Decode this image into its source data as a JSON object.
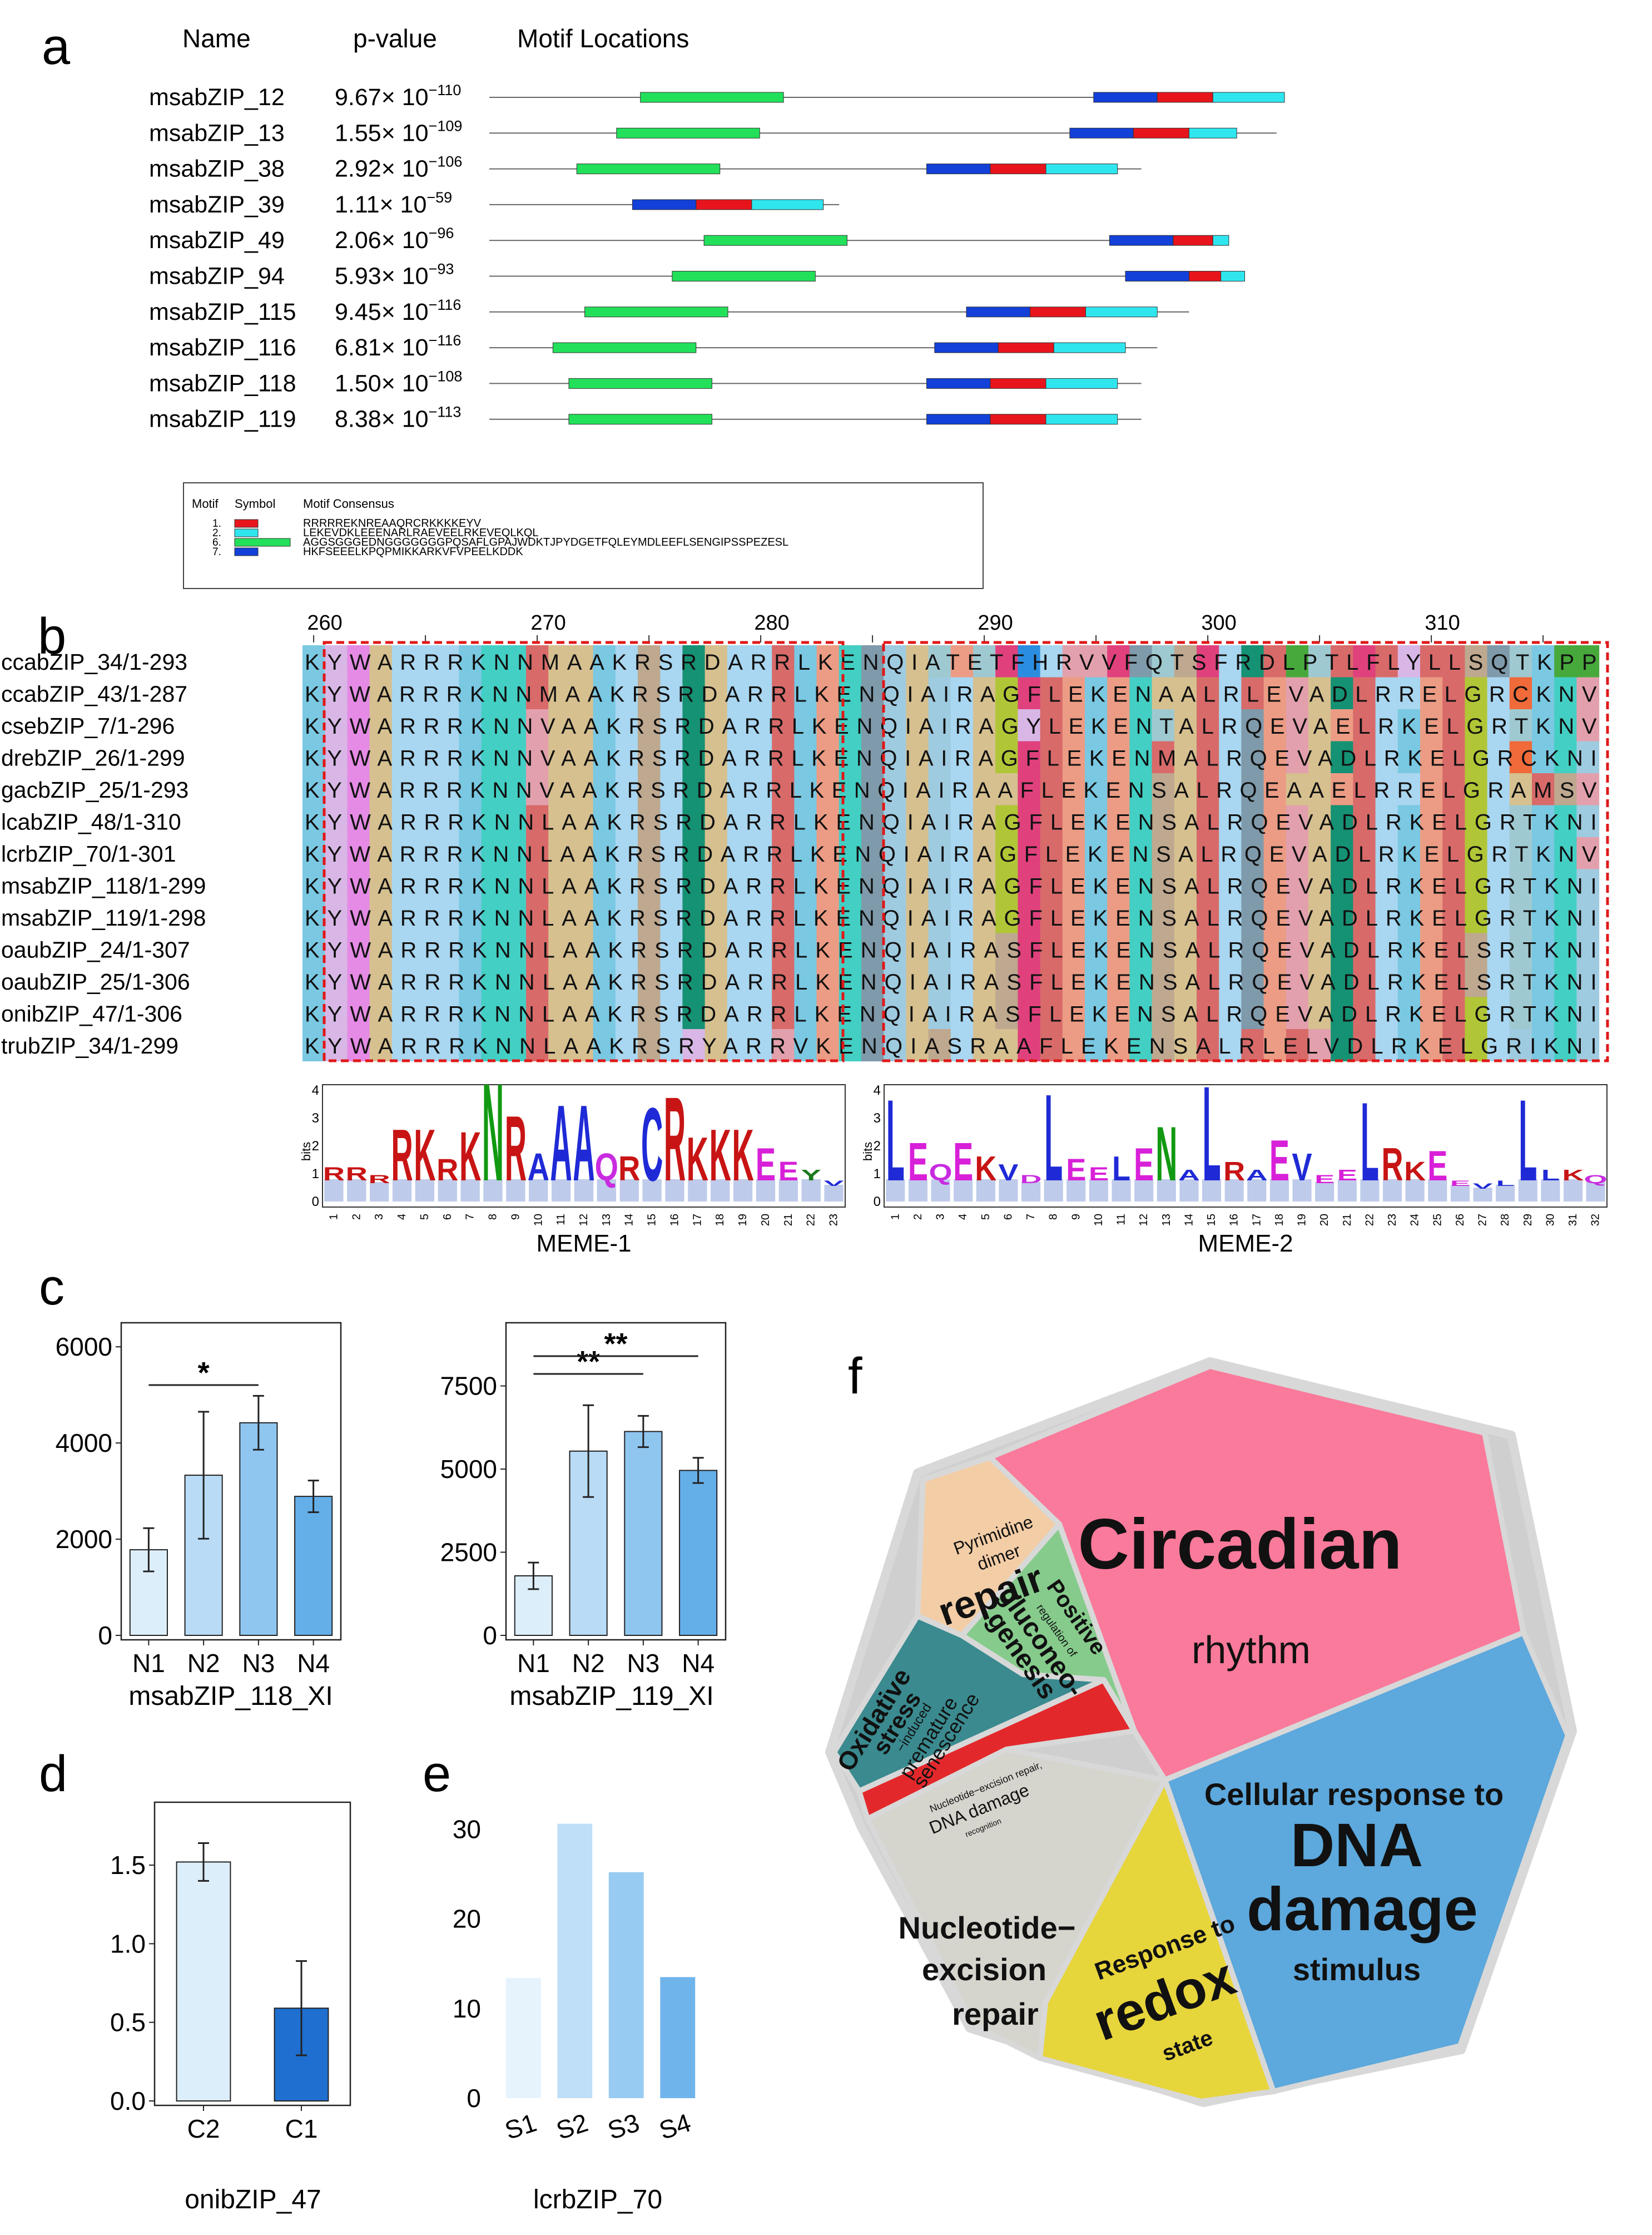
{
  "panel_labels": {
    "a": "a",
    "b": "b",
    "c": "c",
    "d": "d",
    "e": "e",
    "f": "f"
  },
  "panel_a": {
    "headers": {
      "name": "Name",
      "pvalue": "p-value",
      "motifs": "Motif Locations"
    },
    "rows": [
      {
        "name": "msabZIP_12",
        "p_mant": "9.67× 10",
        "p_exp": "−110",
        "length": 1.0,
        "motifs": [
          {
            "m": 6,
            "s": 0.19,
            "e": 0.37
          },
          {
            "m": 7,
            "s": 0.76,
            "e": 0.84
          },
          {
            "m": 1,
            "s": 0.84,
            "e": 0.91
          },
          {
            "m": 2,
            "s": 0.91,
            "e": 1.0
          }
        ]
      },
      {
        "name": "msabZIP_13",
        "p_mant": "1.55× 10",
        "p_exp": "−109",
        "length": 0.99,
        "motifs": [
          {
            "m": 6,
            "s": 0.16,
            "e": 0.34
          },
          {
            "m": 7,
            "s": 0.73,
            "e": 0.81
          },
          {
            "m": 1,
            "s": 0.81,
            "e": 0.88
          },
          {
            "m": 2,
            "s": 0.88,
            "e": 0.94
          }
        ]
      },
      {
        "name": "msabZIP_38",
        "p_mant": "2.92× 10",
        "p_exp": "−106",
        "length": 0.82,
        "motifs": [
          {
            "m": 6,
            "s": 0.11,
            "e": 0.29
          },
          {
            "m": 7,
            "s": 0.55,
            "e": 0.63
          },
          {
            "m": 1,
            "s": 0.63,
            "e": 0.7
          },
          {
            "m": 2,
            "s": 0.7,
            "e": 0.79
          }
        ]
      },
      {
        "name": "msabZIP_39",
        "p_mant": "1.11× 10",
        "p_exp": "−59",
        "length": 0.44,
        "motifs": [
          {
            "m": 7,
            "s": 0.18,
            "e": 0.26
          },
          {
            "m": 1,
            "s": 0.26,
            "e": 0.33
          },
          {
            "m": 2,
            "s": 0.33,
            "e": 0.42
          }
        ]
      },
      {
        "name": "msabZIP_49",
        "p_mant": "2.06× 10",
        "p_exp": "−96",
        "length": 0.93,
        "motifs": [
          {
            "m": 6,
            "s": 0.27,
            "e": 0.45
          },
          {
            "m": 7,
            "s": 0.78,
            "e": 0.86
          },
          {
            "m": 1,
            "s": 0.86,
            "e": 0.91
          },
          {
            "m": 2,
            "s": 0.91,
            "e": 0.93
          }
        ]
      },
      {
        "name": "msabZIP_94",
        "p_mant": "5.93× 10",
        "p_exp": "−93",
        "length": 0.95,
        "motifs": [
          {
            "m": 6,
            "s": 0.23,
            "e": 0.41
          },
          {
            "m": 7,
            "s": 0.8,
            "e": 0.88
          },
          {
            "m": 1,
            "s": 0.88,
            "e": 0.92
          },
          {
            "m": 2,
            "s": 0.92,
            "e": 0.95
          }
        ]
      },
      {
        "name": "msabZIP_115",
        "p_mant": "9.45× 10",
        "p_exp": "−116",
        "length": 0.88,
        "motifs": [
          {
            "m": 6,
            "s": 0.12,
            "e": 0.3
          },
          {
            "m": 7,
            "s": 0.6,
            "e": 0.68
          },
          {
            "m": 1,
            "s": 0.68,
            "e": 0.75
          },
          {
            "m": 2,
            "s": 0.75,
            "e": 0.84
          }
        ]
      },
      {
        "name": "msabZIP_116",
        "p_mant": "6.81× 10",
        "p_exp": "−116",
        "length": 0.84,
        "motifs": [
          {
            "m": 6,
            "s": 0.08,
            "e": 0.26
          },
          {
            "m": 7,
            "s": 0.56,
            "e": 0.64
          },
          {
            "m": 1,
            "s": 0.64,
            "e": 0.71
          },
          {
            "m": 2,
            "s": 0.71,
            "e": 0.8
          }
        ]
      },
      {
        "name": "msabZIP_118",
        "p_mant": "1.50× 10",
        "p_exp": "−108",
        "length": 0.82,
        "motifs": [
          {
            "m": 6,
            "s": 0.1,
            "e": 0.28
          },
          {
            "m": 7,
            "s": 0.55,
            "e": 0.63
          },
          {
            "m": 1,
            "s": 0.63,
            "e": 0.7
          },
          {
            "m": 2,
            "s": 0.7,
            "e": 0.79
          }
        ]
      },
      {
        "name": "msabZIP_119",
        "p_mant": "8.38× 10",
        "p_exp": "−113",
        "length": 0.82,
        "motifs": [
          {
            "m": 6,
            "s": 0.1,
            "e": 0.28
          },
          {
            "m": 7,
            "s": 0.55,
            "e": 0.63
          },
          {
            "m": 1,
            "s": 0.63,
            "e": 0.7
          },
          {
            "m": 2,
            "s": 0.7,
            "e": 0.79
          }
        ]
      }
    ],
    "motif_colors": {
      "1": "#e8141c",
      "2": "#2fe6ef",
      "6": "#22e05a",
      "7": "#1240d8"
    },
    "legend": {
      "headers": {
        "motif": "Motif",
        "symbol": "Symbol",
        "consensus": "Motif Consensus"
      },
      "items": [
        {
          "id": "1.",
          "motif": 1,
          "consensus": "RRRRREKNREAAQRCRKKKKEYV"
        },
        {
          "id": "2.",
          "motif": 2,
          "consensus": "LEKEVDKLEEENARLRAEVEELRKEVEQLKQL"
        },
        {
          "id": "6.",
          "motif": 6,
          "consensus": "AGGSGGGEDNGGGGGGGPQSAFLGPAJWDKTJPYDGETFQLEYMDLEEFLSENGIPSSPEZESL"
        },
        {
          "id": "7.",
          "motif": 7,
          "consensus": "HKFSEEELKPQPMIKKARKVFVPEELKDDK"
        }
      ]
    }
  },
  "panel_b": {
    "ruler": [
      {
        "label": "260",
        "pos": 1
      },
      {
        "label": "270",
        "pos": 11
      },
      {
        "label": "280",
        "pos": 21
      },
      {
        "label": "290",
        "pos": 31
      },
      {
        "label": "300",
        "pos": 41
      },
      {
        "label": "310",
        "pos": 51
      }
    ],
    "sequences": [
      {
        "name": "ccabZIP_34/1-293",
        "seq": "KYWARRRKNNMAAKRSRDARRLKENQIATETFHRVVFQTSFRDLPTLFLYLLSQTKPP"
      },
      {
        "name": "ccabZIP_43/1-287",
        "seq": "KYWARRRKNNMAAKRSRDARRLKENQIAIRAGFLEKENAALRLEVADLRRELGRCKNV"
      },
      {
        "name": "csebZIP_7/1-296",
        "seq": "KYWARRRKNNVAAKRSRDARRLKENQIAIRAGYLEKENTALRQEVAELRKELGRTKNV"
      },
      {
        "name": "drebZIP_26/1-299",
        "seq": "KYWARRRKNNVAAKRSRDARRLKENQIAIRAGFLEKENMALRQEVADLRKELGRCKNI"
      },
      {
        "name": "gacbZIP_25/1-293",
        "seq": "KYWARRRKNNVAAKRSRDARRLKENQIAIRAAFLEKENSALRQEAAELRRELGRAMSV"
      },
      {
        "name": "lcabZIP_48/1-310",
        "seq": "KYWARRRKNNLAAKRSRDARRLKENQIAIRAGFLEKENSALRQEVADLRKELGRTKNI"
      },
      {
        "name": "lcrbZIP_70/1-301",
        "seq": "KYWARRRKNNLAAKRSRDARRLKENQIAIRAGFLEKENSALRQEVADLRKELGRTKNV"
      },
      {
        "name": "msabZIP_118/1-299",
        "seq": "KYWARRRKNNLAAKRSRDARRLKENQIAIRAGFLEKENSALRQEVADLRKELGRTKNI"
      },
      {
        "name": "msabZIP_119/1-298",
        "seq": "KYWARRRKNNLAAKRSRDARRLKENQIAIRAGFLEKENSALRQEVADLRKELGRTKNI"
      },
      {
        "name": "oaubZIP_24/1-307",
        "seq": "KYWARRRKNNLAAKRSRDARRLKENQIAIRASFLEKENSALRQEVADLRKELSRTKNI"
      },
      {
        "name": "oaubZIP_25/1-306",
        "seq": "KYWARRRKNNLAAKRSRDARRLKENQIAIRASFLEKENSALRQEVADLRKELSRTKNI"
      },
      {
        "name": "onibZIP_47/1-306",
        "seq": "KYWARRRKNNLAAKRSRDARRLKENQIAIRASFLEKENSALRQEVADLRKELGRTKNI"
      },
      {
        "name": "trubZIP_34/1-299",
        "seq": "KYWARRRKNNLAAKRSRYARRVKENQIASRAAFLEKENSALRLELVDLRKELGRIKNI"
      }
    ],
    "aa_colors": {
      "A": "#d6c08f",
      "R": "#a9d6f0",
      "N": "#43cfc4",
      "D": "#159173",
      "C": "#f06a3a",
      "Q": "#7f9aaa",
      "E": "#ec9c84",
      "G": "#b1c636",
      "H": "#2b8de0",
      "I": "#9fcbe0",
      "L": "#d86a6a",
      "K": "#7ac8e2",
      "M": "#d86a6a",
      "F": "#e0417d",
      "P": "#47a93c",
      "S": "#bea88f",
      "T": "#9fc9d1",
      "W": "#e58be5",
      "Y": "#d8b7e6",
      "V": "#e2a0ad"
    },
    "logos": [
      {
        "title": "MEME-1",
        "ylabel": "bits",
        "yticks": [
          "0",
          "1",
          "2",
          "3",
          "4"
        ],
        "ymax": 4,
        "positions": 23,
        "letters": [
          "R",
          "R",
          "R",
          "R",
          "K",
          "R",
          "K",
          "N",
          "R",
          "A",
          "A",
          "A",
          "Q",
          "R",
          "C",
          "R",
          "K",
          "K",
          "K",
          "E",
          "E",
          "Y",
          "V"
        ],
        "heights": [
          0.9,
          0.9,
          0.7,
          2.3,
          2.3,
          1.2,
          2.2,
          4.0,
          2.8,
          1.4,
          3.2,
          3.2,
          1.4,
          1.3,
          3.1,
          3.5,
          2.0,
          2.3,
          2.3,
          1.6,
          1.1,
          0.8,
          0.6
        ]
      },
      {
        "title": "MEME-2",
        "ylabel": "bits",
        "yticks": [
          "0",
          "1",
          "2",
          "3",
          "4"
        ],
        "ymax": 4,
        "positions": 32,
        "letters": [
          "L",
          "E",
          "Q",
          "E",
          "K",
          "V",
          "D",
          "L",
          "E",
          "E",
          "L",
          "E",
          "N",
          "A",
          "L",
          "R",
          "A",
          "E",
          "V",
          "E",
          "E",
          "L",
          "R",
          "K",
          "E",
          "E",
          "V",
          "L",
          "L",
          "L",
          "K",
          "Q"
        ],
        "heights": [
          3.4,
          1.8,
          1.0,
          1.8,
          1.3,
          1.0,
          0.7,
          3.6,
          1.2,
          0.9,
          1.3,
          1.6,
          2.4,
          0.8,
          3.9,
          1.1,
          0.8,
          1.9,
          1.4,
          0.7,
          0.8,
          3.3,
          1.6,
          1.1,
          1.5,
          0.6,
          0.5,
          0.6,
          3.4,
          0.8,
          0.8,
          0.7
        ]
      }
    ]
  },
  "chart_data": [
    {
      "type": "bar",
      "title": "msabZIP_118_XI",
      "categories": [
        "N1",
        "N2",
        "N3",
        "N4"
      ],
      "values": [
        1780,
        3330,
        4420,
        2890
      ],
      "errors": [
        450,
        1320,
        560,
        330
      ],
      "ylim": [
        0,
        6500
      ],
      "yticks": [
        {
          "v": 0,
          "l": "0"
        },
        {
          "v": 2000,
          "l": "2000"
        },
        {
          "v": 4000,
          "l": "4000"
        },
        {
          "v": 6000,
          "l": "6000"
        }
      ],
      "colors": [
        "#ddeefb",
        "#b9dbf6",
        "#8fc6f0",
        "#65afe9"
      ],
      "significance": [
        {
          "from": 0,
          "to": 2,
          "label": "*"
        }
      ]
    },
    {
      "type": "bar",
      "title": "msabZIP_119_XI",
      "categories": [
        "N1",
        "N2",
        "N3",
        "N4"
      ],
      "values": [
        1790,
        5540,
        6130,
        4960
      ],
      "errors": [
        400,
        1380,
        470,
        380
      ],
      "ylim": [
        0,
        9400
      ],
      "yticks": [
        {
          "v": 0,
          "l": "0"
        },
        {
          "v": 2500,
          "l": "2500"
        },
        {
          "v": 5000,
          "l": "5000"
        },
        {
          "v": 7500,
          "l": "7500"
        }
      ],
      "colors": [
        "#ddeefb",
        "#b9dbf6",
        "#8fc6f0",
        "#65afe9"
      ],
      "significance": [
        {
          "from": 0,
          "to": 2,
          "label": "**"
        },
        {
          "from": 0,
          "to": 3,
          "label": "**"
        }
      ]
    },
    {
      "type": "bar",
      "title": "onibZIP_47",
      "categories": [
        "C2",
        "C1"
      ],
      "values": [
        1.52,
        0.59
      ],
      "errors": [
        0.12,
        0.3
      ],
      "ylim": [
        0,
        1.9
      ],
      "yticks": [
        {
          "v": 0,
          "l": "0.0"
        },
        {
          "v": 0.5,
          "l": "0.5"
        },
        {
          "v": 1.0,
          "l": "1.0"
        },
        {
          "v": 1.5,
          "l": "1.5"
        }
      ],
      "colors": [
        "#ddeefb",
        "#1f6fd0"
      ]
    },
    {
      "type": "bar",
      "title": "lcrbZIP_70",
      "categories": [
        "S1",
        "S2",
        "S3",
        "S4"
      ],
      "values": [
        13.4,
        30.6,
        25.2,
        13.5
      ],
      "ylim": [
        0,
        33
      ],
      "yticks": [
        {
          "v": 0,
          "l": "0"
        },
        {
          "v": 10,
          "l": "10"
        },
        {
          "v": 20,
          "l": "20"
        },
        {
          "v": 30,
          "l": "30"
        }
      ],
      "colors": [
        "#e6f2fc",
        "#bfdef7",
        "#98cbf2",
        "#70b4ec"
      ]
    }
  ],
  "panel_f": {
    "cells": [
      {
        "id": "circadian",
        "color": "#fa7a9b",
        "lines": [
          "Circadian",
          "rhythm"
        ]
      },
      {
        "id": "dna-damage",
        "color": "#5da8dc",
        "lines": [
          "Cellular response to",
          "DNA",
          "damage",
          "stimulus"
        ]
      },
      {
        "id": "redox",
        "color": "#e7d53c",
        "lines": [
          "Response to",
          "redox",
          "state"
        ]
      },
      {
        "id": "nucleotide-excision",
        "color": "#d5d4cd",
        "lines": [
          "Nucleotide−",
          "excision",
          "repair"
        ]
      },
      {
        "id": "dna-damage-recognition",
        "color": "#e3282c",
        "lines": [
          "Nucleotide−excision repair,",
          "DNA damage",
          "recognition"
        ]
      },
      {
        "id": "oxidative-stress",
        "color": "#3a8a8f",
        "lines": [
          "Oxidative",
          "stress",
          "−induced",
          "premature",
          "senescence"
        ]
      },
      {
        "id": "gluconeogenesis",
        "color": "#86cb8c",
        "lines": [
          "Positive",
          "regulation of",
          "gluconeo-",
          "genesis"
        ]
      },
      {
        "id": "pyrimidine-repair",
        "color": "#f3cda6",
        "lines": [
          "Pyrimidine",
          "dimer",
          "repair"
        ]
      }
    ]
  }
}
